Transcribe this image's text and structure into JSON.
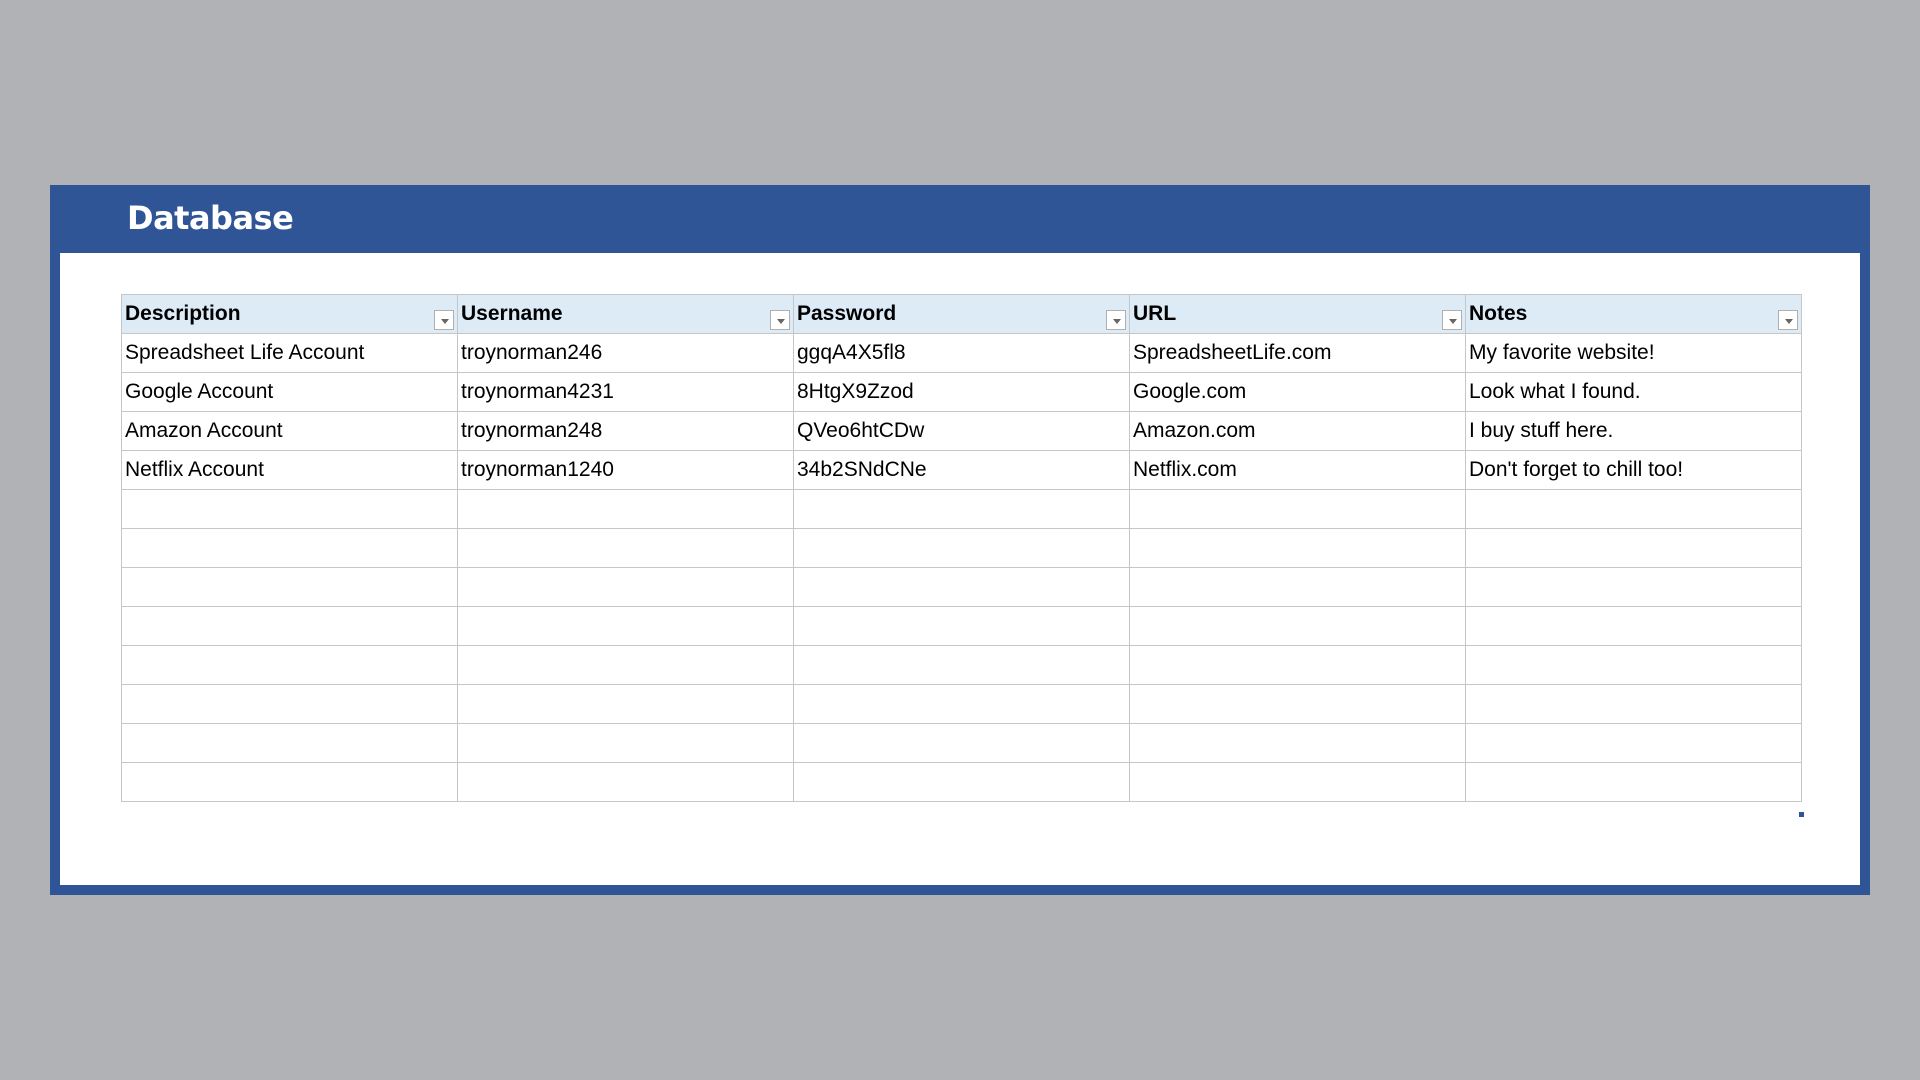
{
  "title": "Database",
  "colors": {
    "frame": "#2f5597",
    "header_bg": "#ddebf7",
    "background": "#b1b2b5"
  },
  "table": {
    "columns": [
      "Description",
      "Username",
      "Password",
      "URL",
      "Notes"
    ],
    "rows": [
      [
        "Spreadsheet Life Account",
        "troynorman246",
        "ggqA4X5fl8",
        "SpreadsheetLife.com",
        "My favorite website!"
      ],
      [
        "Google Account",
        "troynorman4231",
        "8HtgX9Zzod",
        "Google.com",
        "Look what I found."
      ],
      [
        "Amazon Account",
        "troynorman248",
        "QVeo6htCDw",
        "Amazon.com",
        "I buy stuff here."
      ],
      [
        "Netflix Account",
        "troynorman1240",
        "34b2SNdCNe",
        "Netflix.com",
        "Don't forget to chill too!"
      ]
    ],
    "empty_rows": 8
  }
}
